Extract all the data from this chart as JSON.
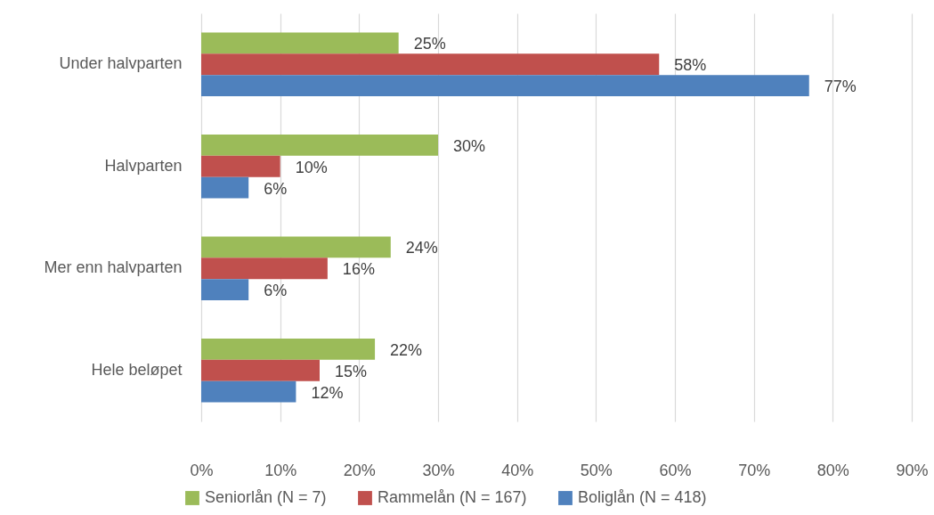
{
  "chart_data": {
    "type": "bar",
    "orientation": "horizontal",
    "categories": [
      "Under halvparten",
      "Halvparten",
      "Mer enn halvparten",
      "Hele beløpet"
    ],
    "series": [
      {
        "name": "Seniorlån (N = 7)",
        "color": "#9bbb59",
        "values": [
          25,
          30,
          24,
          22
        ],
        "value_labels": [
          "25%",
          "30%",
          "24%",
          "22%"
        ]
      },
      {
        "name": "Rammelån (N = 167)",
        "color": "#c0504d",
        "values": [
          58,
          10,
          16,
          15
        ],
        "value_labels": [
          "58%",
          "10%",
          "16%",
          "15%"
        ]
      },
      {
        "name": "Boliglån (N = 418)",
        "color": "#4f81bd",
        "values": [
          77,
          6,
          6,
          12
        ],
        "value_labels": [
          "77%",
          "6%",
          "6%",
          "12%"
        ]
      }
    ],
    "xlim": [
      0,
      90
    ],
    "xticks": [
      {
        "value": 0,
        "label": "0%"
      },
      {
        "value": 10,
        "label": "10%"
      },
      {
        "value": 20,
        "label": "20%"
      },
      {
        "value": 30,
        "label": "30%"
      },
      {
        "value": 40,
        "label": "40%"
      },
      {
        "value": 50,
        "label": "50%"
      },
      {
        "value": 60,
        "label": "60%"
      },
      {
        "value": 70,
        "label": "70%"
      },
      {
        "value": 80,
        "label": "80%"
      },
      {
        "value": 90,
        "label": "90%"
      }
    ],
    "grid": "x",
    "legend": "bottom"
  }
}
